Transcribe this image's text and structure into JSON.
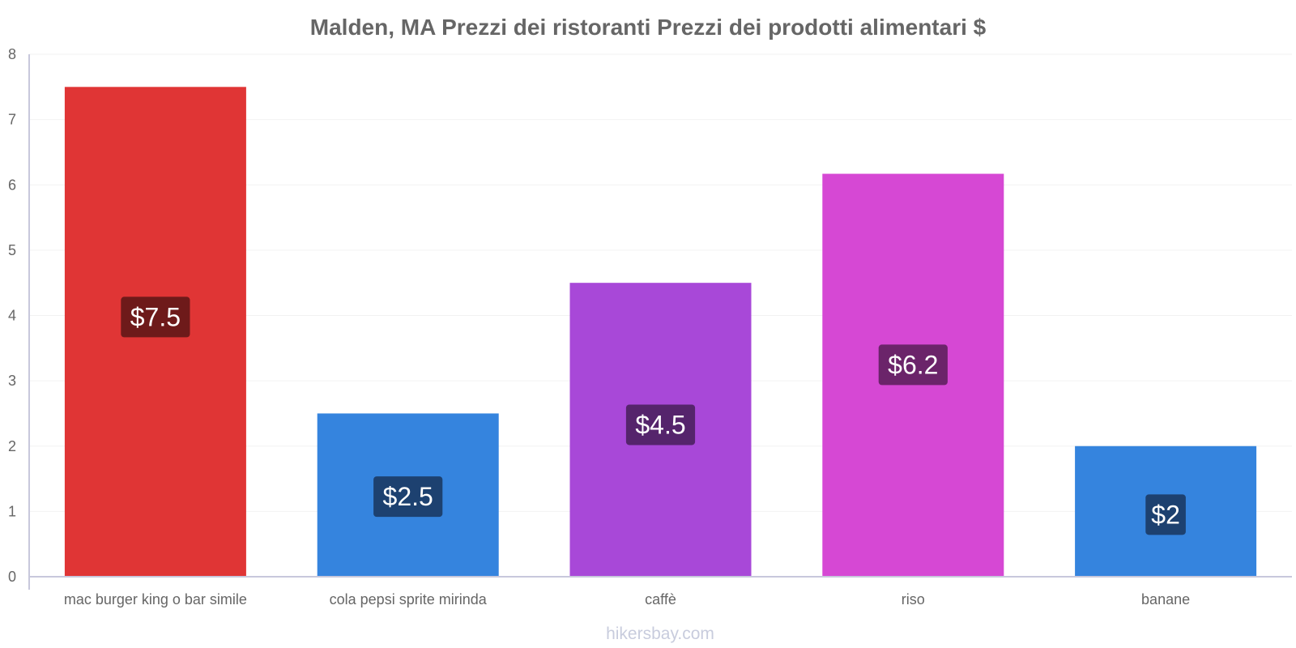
{
  "chart_data": {
    "type": "bar",
    "title": "Malden, MA Prezzi dei ristoranti Prezzi dei prodotti alimentari $",
    "categories": [
      "mac burger king o bar simile",
      "cola pepsi sprite mirinda",
      "caffè",
      "riso",
      "banane"
    ],
    "values": [
      7.5,
      2.5,
      4.5,
      6.17,
      2
    ],
    "value_labels": [
      "$7.5",
      "$2.5",
      "$4.5",
      "$6.2",
      "$2"
    ],
    "bar_colors": [
      "#e03535",
      "#3584de",
      "#a848d8",
      "#d648d4",
      "#3584de"
    ],
    "label_bg_colors": [
      "#6e1a1a",
      "#1d4170",
      "#55246c",
      "#6b246a",
      "#1d4170"
    ],
    "xlabel": "",
    "ylabel": "",
    "ylim": [
      0,
      8
    ],
    "yticks": [
      "0",
      "1",
      "2",
      "3",
      "4",
      "5",
      "6",
      "7",
      "8"
    ],
    "grid": true
  },
  "footer": {
    "source": "hikersbay.com"
  },
  "colors": {
    "axis": "#c8c8dc",
    "grid": "#f2f2f2",
    "text": "#666666"
  }
}
